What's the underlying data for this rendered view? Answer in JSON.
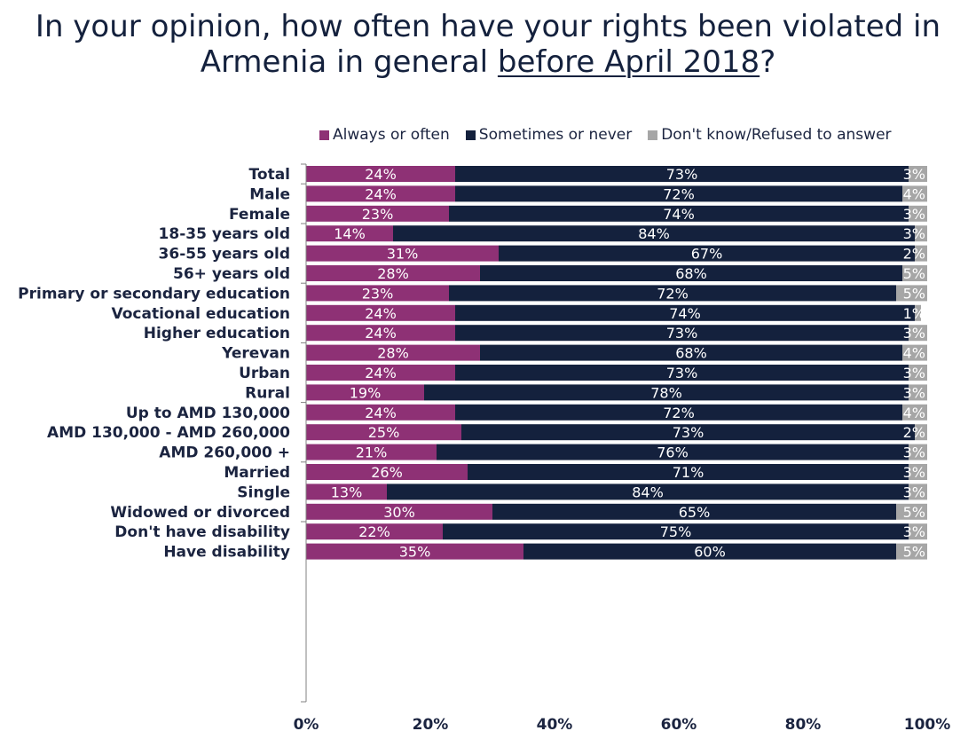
{
  "title": {
    "line1": "In your opinion, how often have your rights been violated in",
    "line2_prefix": "Armenia in general ",
    "line2_underlined": "before April 2018",
    "line2_suffix": "?"
  },
  "chart_data": {
    "type": "bar",
    "orientation": "horizontal",
    "stacked": true,
    "xlim": [
      0,
      100
    ],
    "x_ticks": [
      "0%",
      "20%",
      "40%",
      "60%",
      "80%",
      "100%"
    ],
    "legend_placement": "top",
    "grid": false,
    "series": [
      {
        "name": "Always or often",
        "color": "#8e3175"
      },
      {
        "name": "Sometimes or never",
        "color": "#14213d"
      },
      {
        "name": "Don't know/Refused to answer",
        "color": "#a6a6a6"
      }
    ],
    "groups": [
      {
        "rows": [
          {
            "label": "Total",
            "values": [
              24,
              73,
              3
            ],
            "labels": [
              "24%",
              "73%",
              "3%"
            ]
          }
        ]
      },
      {
        "rows": [
          {
            "label": "Male",
            "values": [
              24,
              72,
              4
            ],
            "labels": [
              "24%",
              "72%",
              "4%"
            ]
          },
          {
            "label": "Female",
            "values": [
              23,
              74,
              3
            ],
            "labels": [
              "23%",
              "74%",
              "3%"
            ]
          }
        ]
      },
      {
        "rows": [
          {
            "label": "18-35 years old",
            "values": [
              14,
              84,
              3
            ],
            "labels": [
              "14%",
              "84%",
              "3%"
            ]
          },
          {
            "label": "36-55 years old",
            "values": [
              31,
              67,
              2
            ],
            "labels": [
              "31%",
              "67%",
              "2%"
            ]
          },
          {
            "label": "56+ years old",
            "values": [
              28,
              68,
              5
            ],
            "labels": [
              "28%",
              "68%",
              "5%"
            ]
          }
        ]
      },
      {
        "rows": [
          {
            "label": "Primary or secondary education",
            "values": [
              23,
              72,
              5
            ],
            "labels": [
              "23%",
              "72%",
              "5%"
            ]
          },
          {
            "label": "Vocational education",
            "values": [
              24,
              74,
              1
            ],
            "labels": [
              "24%",
              "74%",
              "1%"
            ]
          },
          {
            "label": "Higher education",
            "values": [
              24,
              73,
              3
            ],
            "labels": [
              "24%",
              "73%",
              "3%"
            ]
          }
        ]
      },
      {
        "rows": [
          {
            "label": "Yerevan",
            "values": [
              28,
              68,
              4
            ],
            "labels": [
              "28%",
              "68%",
              "4%"
            ]
          },
          {
            "label": "Urban",
            "values": [
              24,
              73,
              3
            ],
            "labels": [
              "24%",
              "73%",
              "3%"
            ]
          },
          {
            "label": "Rural",
            "values": [
              19,
              78,
              3
            ],
            "labels": [
              "19%",
              "78%",
              "3%"
            ]
          }
        ]
      },
      {
        "rows": [
          {
            "label": "Up to AMD 130,000",
            "values": [
              24,
              72,
              4
            ],
            "labels": [
              "24%",
              "72%",
              "4%"
            ]
          },
          {
            "label": "AMD 130,000 - AMD 260,000",
            "values": [
              25,
              73,
              2
            ],
            "labels": [
              "25%",
              "73%",
              "2%"
            ]
          },
          {
            "label": "AMD 260,000 +",
            "values": [
              21,
              76,
              3
            ],
            "labels": [
              "21%",
              "76%",
              "3%"
            ]
          }
        ]
      },
      {
        "rows": [
          {
            "label": "Married",
            "values": [
              26,
              71,
              3
            ],
            "labels": [
              "26%",
              "71%",
              "3%"
            ]
          },
          {
            "label": "Single",
            "values": [
              13,
              84,
              3
            ],
            "labels": [
              "13%",
              "84%",
              "3%"
            ]
          },
          {
            "label": "Widowed or divorced",
            "values": [
              30,
              65,
              5
            ],
            "labels": [
              "30%",
              "65%",
              "5%"
            ]
          }
        ]
      },
      {
        "rows": [
          {
            "label": "Don't have disability",
            "values": [
              22,
              75,
              3
            ],
            "labels": [
              "22%",
              "75%",
              "3%"
            ]
          },
          {
            "label": "Have disability",
            "values": [
              35,
              60,
              5
            ],
            "labels": [
              "35%",
              "60%",
              "5%"
            ]
          }
        ]
      }
    ]
  }
}
